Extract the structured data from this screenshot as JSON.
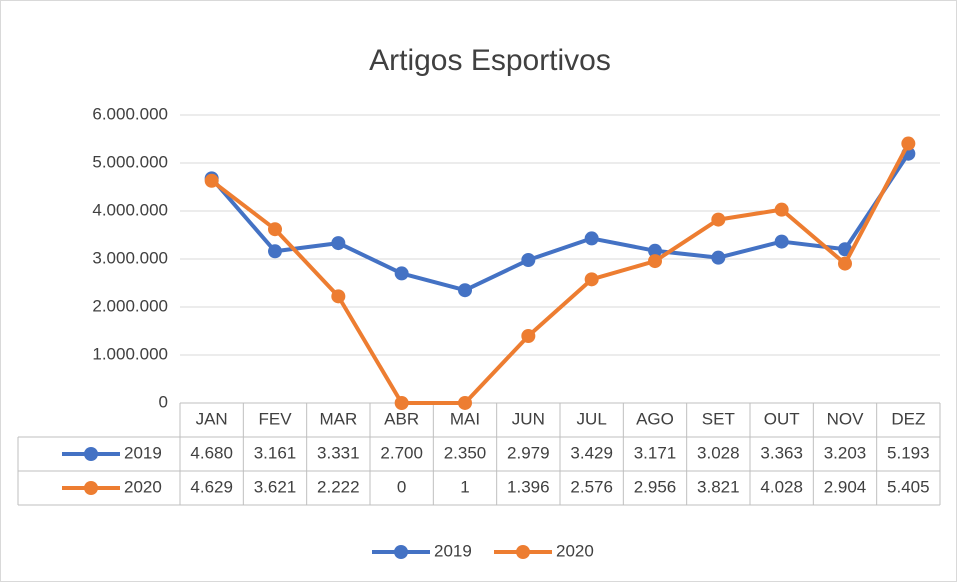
{
  "chart_data": {
    "type": "line",
    "title": "Artigos Esportivos",
    "categories": [
      "JAN",
      "FEV",
      "MAR",
      "ABR",
      "MAI",
      "JUN",
      "JUL",
      "AGO",
      "SET",
      "OUT",
      "NOV",
      "DEZ"
    ],
    "series": [
      {
        "name": "2019",
        "color": "#4472c4",
        "values": [
          4680000,
          3161000,
          3331000,
          2700000,
          2350000,
          2979000,
          3429000,
          3171000,
          3028000,
          3363000,
          3203000,
          5193000
        ],
        "value_labels": [
          "4.680",
          "3.161",
          "3.331",
          "2.700",
          "2.350",
          "2.979",
          "3.429",
          "3.171",
          "3.028",
          "3.363",
          "3.203",
          "5.193"
        ]
      },
      {
        "name": "2020",
        "color": "#ed7d31",
        "values": [
          4629000,
          3621000,
          2222000,
          0,
          1000,
          1396000,
          2576000,
          2956000,
          3821000,
          4028000,
          2904000,
          5405000
        ],
        "value_labels": [
          "4.629",
          "3.621",
          "2.222",
          "0",
          "1",
          "1.396",
          "2.576",
          "2.956",
          "3.821",
          "4.028",
          "2.904",
          "5.405"
        ]
      }
    ],
    "ylim": [
      0,
      6000000
    ],
    "yticks": [
      0,
      {
        "value": 1000000,
        "label": "1.000.000"
      },
      {
        "value": 2000000,
        "label": "2.000.000"
      },
      {
        "value": 3000000,
        "label": "3.000.000"
      },
      {
        "value": 4000000,
        "label": "4.000.000"
      },
      {
        "value": 5000000,
        "label": "5.000.000"
      },
      {
        "value": 6000000,
        "label": "6.000.000"
      }
    ],
    "grid": true,
    "legend": "bottom"
  }
}
